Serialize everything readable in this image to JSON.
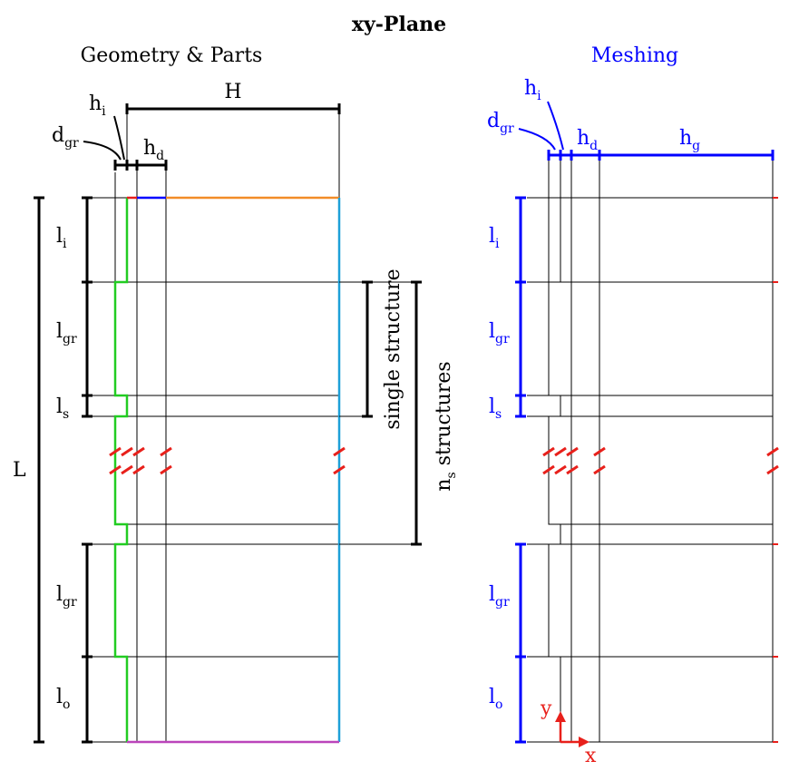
{
  "title": "xy-Plane",
  "left_panel": {
    "heading": "Geometry & Parts",
    "labels": {
      "H": "H",
      "h": "h",
      "h_i_sub": "i",
      "h_d_sub": "d",
      "d": "d",
      "d_gr_sub": "gr",
      "L": "L",
      "l": "l",
      "l_i_sub": "i",
      "l_gr_sub": "gr",
      "l_s_sub": "s",
      "l_o_sub": "o",
      "single_structure": "single structure",
      "n": "n",
      "n_s_sub": "s",
      "n_structures_rest": " structures"
    }
  },
  "right_panel": {
    "heading": "Meshing",
    "labels": {
      "h": "h",
      "h_i_sub": "i",
      "h_d_sub": "d",
      "h_g_sub": "g",
      "d": "d",
      "d_gr_sub": "gr",
      "l": "l",
      "l_i_sub": "i",
      "l_gr_sub": "gr",
      "l_s_sub": "s",
      "l_o_sub": "o",
      "axis_x": "x",
      "axis_y": "y"
    }
  },
  "colors": {
    "text": "#000000",
    "mesh_blue": "#0000ff",
    "green_boundary": "#22cc22",
    "orange_boundary": "#f28c28",
    "cyan_boundary": "#1ea0d8",
    "magenta_boundary": "#bb44bb",
    "blue_boundary": "#0000ff",
    "red_marks": "#e8201b",
    "grid_line": "#000000"
  }
}
